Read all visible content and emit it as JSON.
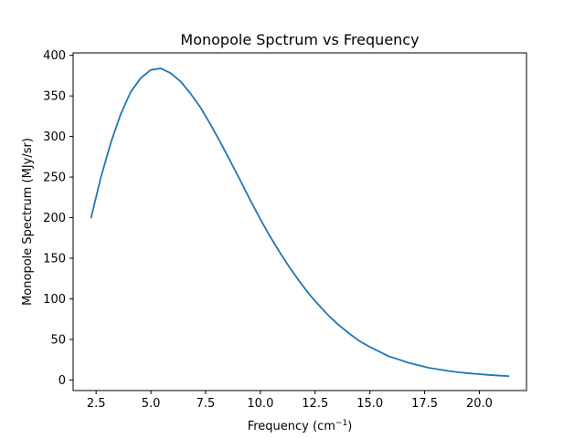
{
  "chart_data": {
    "type": "line",
    "title": "Monopole Spctrum vs Frequency",
    "xlabel": "Frequency (cm",
    "xlabel_sup": "−1",
    "xlabel_close": ")",
    "ylabel": "Monopole Spectrum (MJy/sr)",
    "xlim": [
      1.45,
      22.15
    ],
    "ylim": [
      -13,
      403
    ],
    "xticks": [
      2.5,
      5.0,
      7.5,
      10.0,
      12.5,
      15.0,
      17.5,
      20.0
    ],
    "xtick_labels": [
      "2.5",
      "5.0",
      "7.5",
      "10.0",
      "12.5",
      "15.0",
      "17.5",
      "20.0"
    ],
    "yticks": [
      0,
      50,
      100,
      150,
      200,
      250,
      300,
      350,
      400
    ],
    "ytick_labels": [
      "0",
      "50",
      "100",
      "150",
      "200",
      "250",
      "300",
      "350",
      "400"
    ],
    "grid": false,
    "series": [
      {
        "color": "#1f77b4",
        "x": [
          2.27,
          2.72,
          3.18,
          3.63,
          4.08,
          4.54,
          4.99,
          5.45,
          5.9,
          6.35,
          6.81,
          7.26,
          7.72,
          8.17,
          8.62,
          9.08,
          9.53,
          9.98,
          10.44,
          10.89,
          11.35,
          11.8,
          12.25,
          12.71,
          13.16,
          13.61,
          14.07,
          14.52,
          14.98,
          15.43,
          15.88,
          16.34,
          16.79,
          17.24,
          17.7,
          18.15,
          18.61,
          19.06,
          19.51,
          19.97,
          20.42,
          20.87,
          21.33
        ],
        "y": [
          200,
          250,
          293,
          328,
          355,
          372,
          382,
          384,
          378,
          368,
          353,
          336,
          315,
          293,
          270,
          246,
          222,
          199,
          177,
          157,
          138,
          121,
          105,
          91,
          78,
          67,
          57,
          48,
          41,
          35,
          29,
          25,
          21,
          18,
          15,
          13,
          11,
          9.5,
          8.3,
          7.2,
          6.3,
          5.5,
          4.8
        ]
      }
    ]
  }
}
